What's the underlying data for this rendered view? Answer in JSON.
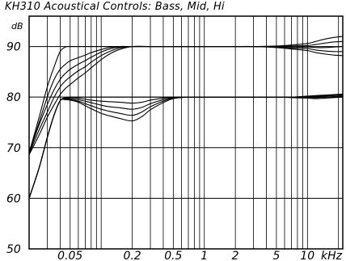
{
  "chart_data": {
    "type": "line",
    "title": "KH310 Acoustical Controls: Bass,  Mid,  Hi",
    "ylabel": "dB",
    "xlabel": "",
    "xscale": "log",
    "xlim": [
      0.02,
      22
    ],
    "ylim": [
      50,
      96
    ],
    "grid": true,
    "x_ticks": [
      {
        "value": 0.05,
        "label": "0.05"
      },
      {
        "value": 0.2,
        "label": "0.2"
      },
      {
        "value": 0.5,
        "label": "0.5"
      },
      {
        "value": 1,
        "label": "1"
      },
      {
        "value": 2,
        "label": "2"
      },
      {
        "value": 5,
        "label": "5"
      },
      {
        "value": 10,
        "label": "10"
      }
    ],
    "x_unit_label": "kHz",
    "y_ticks": [
      50,
      60,
      70,
      80,
      90
    ],
    "series": [
      {
        "group": "upper",
        "x": [
          0.02,
          0.025,
          0.03,
          0.035,
          0.04,
          0.045,
          0.05,
          0.06,
          0.07,
          0.08,
          0.1,
          0.12,
          0.15,
          0.2,
          0.3,
          0.4,
          0.5,
          0.7,
          1,
          1.5,
          2,
          3,
          5,
          7,
          10,
          12,
          15,
          18,
          22
        ],
        "y": [
          69,
          76,
          82,
          86,
          89,
          89.9,
          90,
          90,
          90,
          90,
          90,
          90,
          90,
          90,
          90,
          90,
          90,
          90,
          90,
          90,
          90,
          90,
          90.1,
          90.3,
          90.6,
          91,
          91.5,
          91.8,
          92
        ]
      },
      {
        "group": "upper",
        "x": [
          0.02,
          0.025,
          0.03,
          0.035,
          0.04,
          0.045,
          0.05,
          0.06,
          0.07,
          0.08,
          0.1,
          0.12,
          0.15,
          0.2,
          0.3,
          0.4,
          0.5,
          0.7,
          1,
          1.5,
          2,
          3,
          5,
          7,
          10,
          12,
          15,
          18,
          22
        ],
        "y": [
          69,
          75,
          80,
          83.5,
          85.5,
          86.5,
          87.2,
          87.8,
          88.3,
          88.8,
          89.4,
          89.8,
          90,
          90,
          90,
          90,
          90,
          90,
          90,
          90,
          90,
          90,
          90,
          90.1,
          90.2,
          90.4,
          90.7,
          90.9,
          91
        ]
      },
      {
        "group": "upper",
        "x": [
          0.02,
          0.025,
          0.03,
          0.035,
          0.04,
          0.045,
          0.05,
          0.06,
          0.07,
          0.08,
          0.1,
          0.12,
          0.15,
          0.2,
          0.3,
          0.4,
          0.5,
          0.7,
          1,
          1.5,
          2,
          3,
          5,
          7,
          10,
          12,
          15,
          18,
          22
        ],
        "y": [
          69,
          74.5,
          78.5,
          81.5,
          83.5,
          84.7,
          85.5,
          86.5,
          87.2,
          87.9,
          88.9,
          89.5,
          89.9,
          90,
          90,
          90,
          90,
          90,
          90,
          90,
          90,
          90,
          89.9,
          89.9,
          89.9,
          89.8,
          89.8,
          89.9,
          90
        ]
      },
      {
        "group": "upper",
        "x": [
          0.02,
          0.025,
          0.03,
          0.035,
          0.04,
          0.045,
          0.05,
          0.06,
          0.07,
          0.08,
          0.1,
          0.12,
          0.15,
          0.2,
          0.3,
          0.4,
          0.5,
          0.7,
          1,
          1.5,
          2,
          3,
          5,
          7,
          10,
          12,
          15,
          18,
          22
        ],
        "y": [
          68.8,
          73.5,
          77,
          80,
          82,
          83.2,
          84,
          85.2,
          86,
          86.9,
          88.2,
          89,
          89.7,
          90,
          90,
          90,
          90,
          90,
          90,
          90,
          90,
          90,
          89.9,
          89.7,
          89.6,
          89.3,
          89.1,
          89,
          89
        ]
      },
      {
        "group": "upper",
        "x": [
          0.02,
          0.025,
          0.03,
          0.035,
          0.04,
          0.045,
          0.05,
          0.06,
          0.07,
          0.08,
          0.1,
          0.12,
          0.15,
          0.2,
          0.3,
          0.4,
          0.5,
          0.7,
          1,
          1.5,
          2,
          3,
          5,
          7,
          10,
          12,
          15,
          18,
          22
        ],
        "y": [
          68.6,
          72.5,
          76,
          78.5,
          80.5,
          81.7,
          82.5,
          83.8,
          84.8,
          85.8,
          87.4,
          88.5,
          89.4,
          90,
          90,
          90,
          90,
          90,
          90,
          90,
          90,
          90,
          89.8,
          89.5,
          89.2,
          88.8,
          88.5,
          88.3,
          88.2
        ]
      },
      {
        "group": "lower",
        "x": [
          0.02,
          0.025,
          0.03,
          0.035,
          0.04,
          0.045,
          0.05,
          0.06,
          0.07,
          0.08,
          0.1,
          0.12,
          0.15,
          0.2,
          0.25,
          0.3,
          0.4,
          0.5,
          0.7,
          1,
          1.5,
          2,
          3,
          5,
          7,
          10,
          12,
          15,
          18,
          22
        ],
        "y": [
          60,
          66,
          72,
          76.5,
          79.3,
          79.9,
          80,
          80,
          80,
          80,
          80,
          80,
          80,
          80,
          80,
          80,
          80,
          80,
          80,
          80,
          80,
          80,
          80,
          80,
          80,
          80.1,
          80.2,
          80.3,
          80.4,
          80.5
        ]
      },
      {
        "group": "lower",
        "x": [
          0.02,
          0.025,
          0.03,
          0.035,
          0.04,
          0.045,
          0.05,
          0.06,
          0.07,
          0.08,
          0.1,
          0.12,
          0.15,
          0.2,
          0.25,
          0.3,
          0.4,
          0.5,
          0.7,
          1,
          1.5,
          2,
          3,
          5,
          7,
          10,
          12,
          15,
          18,
          22
        ],
        "y": [
          60,
          66,
          72,
          76.5,
          79.3,
          79.8,
          79.9,
          79.8,
          79.6,
          79.4,
          79.2,
          79.1,
          79,
          78.8,
          79,
          79.4,
          79.8,
          80,
          80,
          80,
          80,
          80,
          80,
          80,
          80,
          80.2,
          80.3,
          80.4,
          80.5,
          80.6
        ]
      },
      {
        "group": "lower",
        "x": [
          0.02,
          0.025,
          0.03,
          0.035,
          0.04,
          0.045,
          0.05,
          0.06,
          0.07,
          0.08,
          0.1,
          0.12,
          0.15,
          0.2,
          0.25,
          0.3,
          0.4,
          0.5,
          0.7,
          1,
          1.5,
          2,
          3,
          5,
          7,
          10,
          12,
          15,
          18,
          22
        ],
        "y": [
          60,
          66,
          72,
          76.5,
          79.3,
          79.7,
          79.7,
          79.5,
          79.2,
          78.9,
          78.4,
          78.1,
          77.9,
          77.6,
          78,
          78.7,
          79.5,
          79.9,
          80,
          80,
          80,
          80,
          80,
          80,
          80,
          80,
          80.1,
          80.2,
          80.3,
          80.4
        ]
      },
      {
        "group": "lower",
        "x": [
          0.02,
          0.025,
          0.03,
          0.035,
          0.04,
          0.045,
          0.05,
          0.06,
          0.07,
          0.08,
          0.1,
          0.12,
          0.15,
          0.2,
          0.25,
          0.3,
          0.4,
          0.5,
          0.7,
          1,
          1.5,
          2,
          3,
          5,
          7,
          10,
          12,
          15,
          18,
          22
        ],
        "y": [
          60,
          66,
          72,
          76.5,
          79.3,
          79.6,
          79.5,
          79.2,
          78.7,
          78.3,
          77.6,
          77.2,
          76.8,
          76.4,
          77.1,
          78.1,
          79.2,
          79.8,
          80,
          80,
          80,
          80,
          80,
          80,
          80,
          79.9,
          79.9,
          80,
          80.1,
          80.2
        ]
      },
      {
        "group": "lower",
        "x": [
          0.02,
          0.025,
          0.03,
          0.035,
          0.04,
          0.045,
          0.05,
          0.06,
          0.07,
          0.08,
          0.1,
          0.12,
          0.15,
          0.2,
          0.25,
          0.3,
          0.4,
          0.5,
          0.7,
          1,
          1.5,
          2,
          3,
          5,
          7,
          10,
          12,
          15,
          18,
          22
        ],
        "y": [
          60,
          66,
          72,
          76.5,
          79.3,
          79.5,
          79.4,
          79,
          78.3,
          77.7,
          76.8,
          76.3,
          75.8,
          75.3,
          76.2,
          77.5,
          78.9,
          79.7,
          80,
          80,
          80,
          80,
          80,
          80,
          79.9,
          79.8,
          79.7,
          79.8,
          79.9,
          80
        ]
      }
    ]
  },
  "colors": {
    "background": "#ffffff",
    "grid": "#000000",
    "curves": "#000000"
  }
}
